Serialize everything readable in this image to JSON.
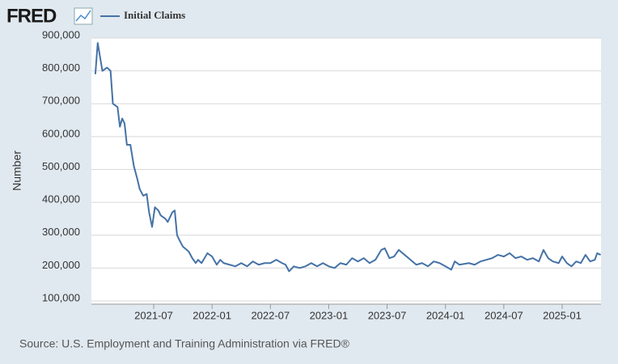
{
  "chart_data": {
    "type": "line",
    "logo": "FRED",
    "y_label": "Number",
    "source": "Source: U.S. Employment and Training Administration via FRED®",
    "x": [
      2021.0,
      2021.02,
      2021.06,
      2021.1,
      2021.13,
      2021.15,
      2021.19,
      2021.21,
      2021.23,
      2021.25,
      2021.27,
      2021.3,
      2021.33,
      2021.36,
      2021.38,
      2021.41,
      2021.44,
      2021.46,
      2021.486,
      2021.51,
      2021.54,
      2021.56,
      2021.6,
      2021.62,
      2021.66,
      2021.68,
      2021.7,
      2021.72,
      2021.75,
      2021.8,
      2021.83,
      2021.86,
      2021.88,
      2021.91,
      2021.96,
      2022.0,
      2022.04,
      2022.07,
      2022.1,
      2022.15,
      2022.2,
      2022.25,
      2022.3,
      2022.35,
      2022.4,
      2022.45,
      2022.5,
      2022.55,
      2022.6,
      2022.63,
      2022.66,
      2022.7,
      2022.75,
      2022.8,
      2022.85,
      2022.9,
      2022.95,
      2023.0,
      2023.05,
      2023.1,
      2023.15,
      2023.2,
      2023.25,
      2023.3,
      2023.35,
      2023.4,
      2023.45,
      2023.48,
      2023.52,
      2023.56,
      2023.6,
      2023.65,
      2023.7,
      2023.75,
      2023.8,
      2023.85,
      2023.9,
      2023.95,
      2024.0,
      2024.05,
      2024.08,
      2024.12,
      2024.2,
      2024.25,
      2024.3,
      2024.35,
      2024.4,
      2024.45,
      2024.5,
      2024.55,
      2024.6,
      2024.65,
      2024.7,
      2024.75,
      2024.8,
      2024.84,
      2024.88,
      2024.92,
      2024.97,
      2025.0,
      2025.04,
      2025.08,
      2025.12,
      2025.16,
      2025.2,
      2025.24,
      2025.28,
      2025.3,
      2025.33
    ],
    "series": [
      {
        "name": "Initial Claims",
        "color": "#4572a7",
        "values": [
          790000,
          885000,
          800000,
          810000,
          800000,
          700000,
          690000,
          630000,
          655000,
          640000,
          575000,
          575000,
          510000,
          470000,
          440000,
          420000,
          425000,
          370000,
          325000,
          385000,
          375000,
          360000,
          350000,
          340000,
          370000,
          375000,
          300000,
          285000,
          265000,
          250000,
          230000,
          215000,
          225000,
          215000,
          245000,
          235000,
          210000,
          225000,
          215000,
          210000,
          205000,
          215000,
          205000,
          220000,
          210000,
          215000,
          215000,
          225000,
          215000,
          210000,
          190000,
          205000,
          200000,
          205000,
          215000,
          205000,
          215000,
          205000,
          200000,
          215000,
          210000,
          230000,
          220000,
          230000,
          215000,
          225000,
          255000,
          260000,
          230000,
          235000,
          255000,
          240000,
          225000,
          210000,
          215000,
          205000,
          220000,
          215000,
          205000,
          195000,
          220000,
          210000,
          215000,
          210000,
          220000,
          225000,
          230000,
          240000,
          235000,
          245000,
          230000,
          235000,
          225000,
          230000,
          220000,
          255000,
          230000,
          220000,
          215000,
          235000,
          215000,
          205000,
          220000,
          215000,
          240000,
          220000,
          225000,
          245000,
          240000
        ]
      }
    ],
    "xlim": [
      2020.966,
      2025.333
    ],
    "xticks": [
      {
        "value": 2021.5,
        "label": "2021-07"
      },
      {
        "value": 2022.0,
        "label": "2022-01"
      },
      {
        "value": 2022.5,
        "label": "2022-07"
      },
      {
        "value": 2023.0,
        "label": "2023-01"
      },
      {
        "value": 2023.5,
        "label": "2023-07"
      },
      {
        "value": 2024.0,
        "label": "2024-01"
      },
      {
        "value": 2024.5,
        "label": "2024-07"
      },
      {
        "value": 2025.0,
        "label": "2025-01"
      }
    ],
    "ylim": [
      90000,
      900000
    ],
    "yticks": [
      {
        "value": 100000,
        "label": "100,000"
      },
      {
        "value": 200000,
        "label": "200,000"
      },
      {
        "value": 300000,
        "label": "300,000"
      },
      {
        "value": 400000,
        "label": "400,000"
      },
      {
        "value": 500000,
        "label": "500,000"
      },
      {
        "value": 600000,
        "label": "600,000"
      },
      {
        "value": 700000,
        "label": "700,000"
      },
      {
        "value": 800000,
        "label": "800,000"
      },
      {
        "value": 900000,
        "label": "900,000"
      }
    ],
    "grid": true
  }
}
